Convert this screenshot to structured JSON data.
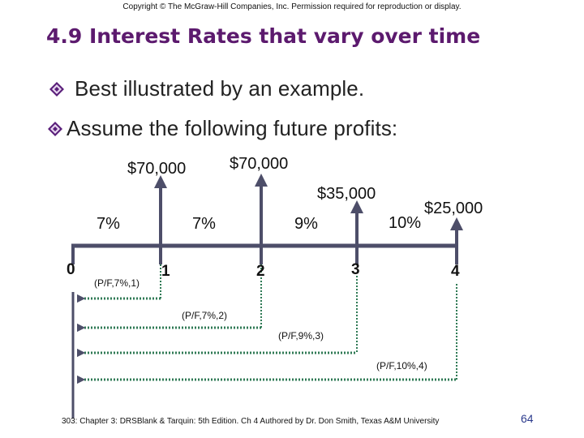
{
  "copyright": "Copyright © The McGraw-Hill Companies, Inc. Permission required for reproduction or display.",
  "title": "4.9 Interest Rates that vary over time",
  "bullets": [
    {
      "text": "Best illustrated by an example."
    },
    {
      "text": "Assume the following future profits:"
    }
  ],
  "cash_flows": [
    "$70,000",
    "$70,000",
    "$35,000",
    "$25,000"
  ],
  "rates": [
    "7%",
    "7%",
    "9%",
    "10%"
  ],
  "periods": [
    "0",
    "1",
    "2",
    "3",
    "4"
  ],
  "factors": [
    "(P/F,7%,1)",
    "(P/F,7%,2)",
    "(P/F,9%,3)",
    "(P/F,10%,4)"
  ],
  "footer": "303: Chapter 3: DRSBlank & Tarquin: 5th Edition. Ch 4 Authored by Dr. Don Smith, Texas A&M University",
  "page_number": "64",
  "colors": {
    "title": "#5c1a6e",
    "arrow": "#4d4e69",
    "dotted": "#2f7a55",
    "bullet_diamond": "#5a1f7a"
  }
}
